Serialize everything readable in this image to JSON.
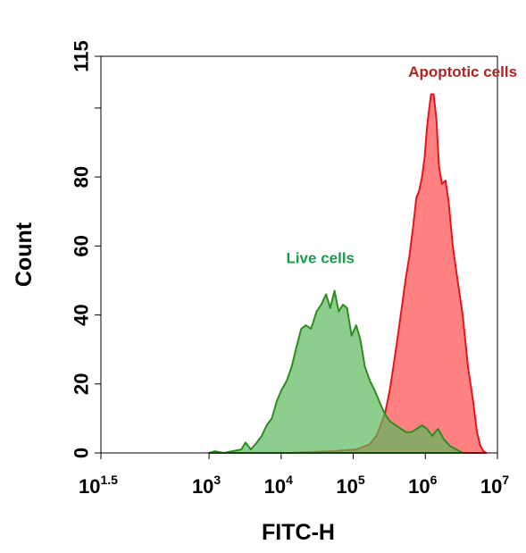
{
  "chart_data": {
    "type": "area",
    "title": "",
    "xlabel": "FITC-H",
    "ylabel": "Count",
    "x_scale": "log10",
    "xlim": [
      31.62,
      10000000
    ],
    "ylim": [
      0,
      115
    ],
    "x_ticks": [
      {
        "value": 31.62,
        "base": "10",
        "exp": "1.5"
      },
      {
        "value": 1000,
        "base": "10",
        "exp": "3"
      },
      {
        "value": 10000,
        "base": "10",
        "exp": "4"
      },
      {
        "value": 100000,
        "base": "10",
        "exp": "5"
      },
      {
        "value": 1000000,
        "base": "10",
        "exp": "6"
      },
      {
        "value": 10000000,
        "base": "10",
        "exp": "7"
      }
    ],
    "y_ticks": [
      {
        "value": 0,
        "label": "0"
      },
      {
        "value": 20,
        "label": "20"
      },
      {
        "value": 40,
        "label": "40"
      },
      {
        "value": 60,
        "label": "60"
      },
      {
        "value": 80,
        "label": "80"
      },
      {
        "value": 100,
        "label": ""
      },
      {
        "value": 115,
        "label": "115"
      }
    ],
    "grid": false,
    "annotations": [
      {
        "text": "Apoptotic cells",
        "x": 3300000,
        "y": 109,
        "color": "#b22222"
      },
      {
        "text": "Live cells",
        "x": 35000,
        "y": 55,
        "color": "#1a9a4a"
      }
    ],
    "series": [
      {
        "name": "Apoptotic cells",
        "line_color": "#e8141e",
        "fill_color": "#ff6b6b",
        "fill_opacity": 0.85,
        "x": [
          1000,
          3200,
          13000,
          50000,
          110000,
          170000,
          210000,
          240000,
          280000,
          320000,
          360000,
          410000,
          470000,
          530000,
          600000,
          680000,
          750000,
          820000,
          900000,
          980000,
          1050000,
          1120000,
          1200000,
          1300000,
          1420000,
          1550000,
          1700000,
          1900000,
          2100000,
          2400000,
          2800000,
          3300000,
          3900000,
          4600000,
          5200000,
          5800000,
          6400000,
          7000000
        ],
        "y": [
          0,
          0,
          0,
          0.5,
          1,
          2.5,
          5,
          8,
          12,
          18,
          25,
          33,
          42,
          50,
          57,
          66,
          74,
          76,
          80,
          86,
          94,
          99,
          104,
          104,
          97,
          83,
          78,
          79,
          73,
          60,
          50,
          40,
          25,
          15,
          6,
          2,
          0.5,
          0
        ]
      },
      {
        "name": "Live cells",
        "line_color": "#2e8b22",
        "fill_color": "#5cb85c",
        "fill_opacity": 0.7,
        "x": [
          1000,
          1200,
          1600,
          2100,
          2800,
          3200,
          3800,
          4600,
          5400,
          6300,
          7400,
          8700,
          10000,
          12000,
          14000,
          16000,
          19000,
          22000,
          26000,
          31000,
          36000,
          42000,
          48000,
          55000,
          63000,
          72000,
          82000,
          95000,
          110000,
          125000,
          145000,
          170000,
          200000,
          240000,
          280000,
          330000,
          390000,
          460000,
          540000,
          640000,
          760000,
          900000,
          1050000,
          1250000,
          1500000,
          1800000,
          2200000,
          2700000,
          3300000
        ],
        "y": [
          0,
          0.5,
          0,
          0.5,
          1,
          3,
          1,
          3,
          5,
          8,
          10,
          15,
          18,
          21,
          25,
          30,
          36,
          37,
          36,
          41,
          43,
          46,
          42,
          47,
          41,
          43,
          42,
          34,
          37,
          33,
          25,
          21,
          18,
          14,
          11,
          9,
          8,
          7,
          6,
          6,
          7,
          8,
          7,
          5,
          7,
          4,
          2,
          1,
          0
        ]
      }
    ]
  }
}
